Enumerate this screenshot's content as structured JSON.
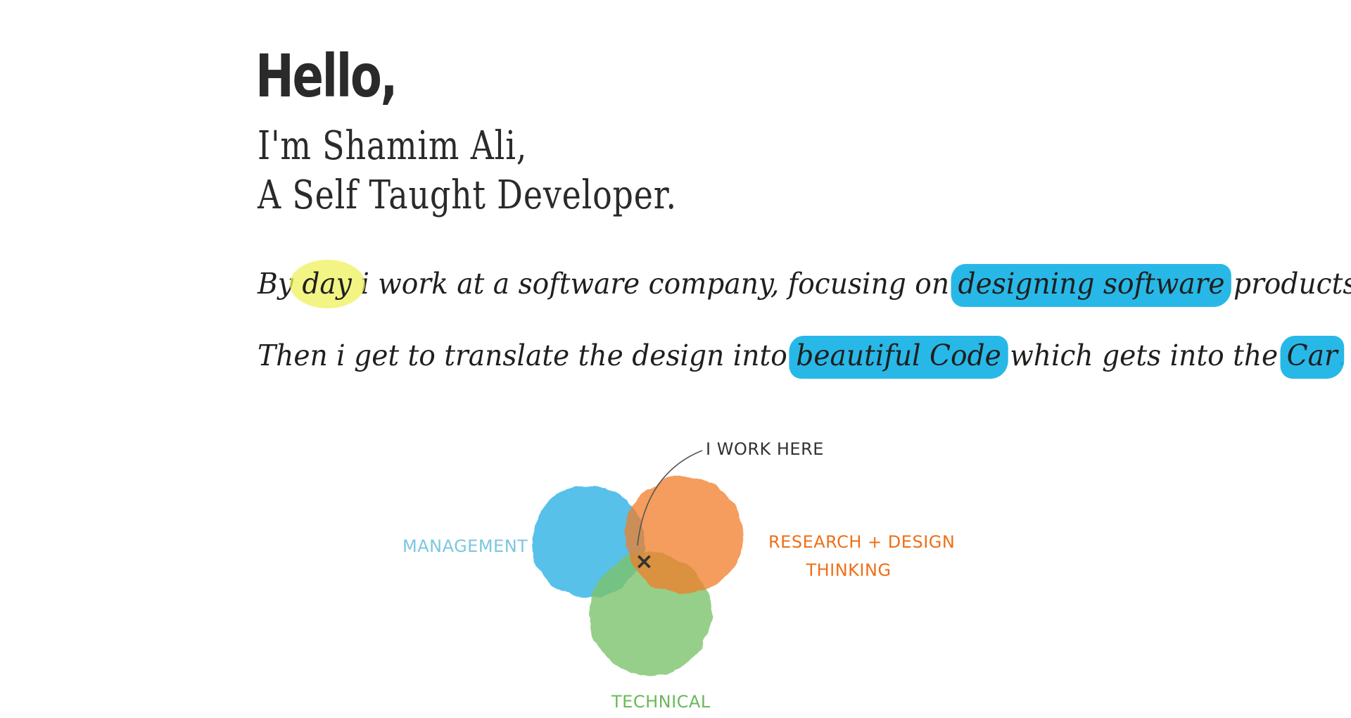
{
  "greeting": "Hello,",
  "intro": {
    "line1": "I'm Shamim Ali,",
    "line2": "A Self Taught Developer."
  },
  "bio": {
    "line1": {
      "pre": "By ",
      "hl_day": "day",
      "mid": " i work at a software company, focusing on ",
      "hl_design": "designing software",
      "post": " products."
    },
    "line2": {
      "pre": "Then i get to translate the design into ",
      "hl_code": "beautiful Code",
      "mid": " which gets into the ",
      "hl_car": "Car",
      "post": "."
    }
  },
  "venn": {
    "annotation": "I WORK HERE",
    "marker": "×",
    "circles": [
      {
        "label": "MANAGEMENT",
        "color": "#39b6e6"
      },
      {
        "label_line1": "RESEARCH + DESIGN",
        "label_line2": "THINKING",
        "color": "#f07c2a"
      },
      {
        "label": "TECHNICAL",
        "color": "#7cc36a"
      }
    ]
  },
  "colors": {
    "highlight_blue": "#1cb4e6",
    "highlight_yellow": "#eef25a",
    "management_text": "#7cc7e0",
    "research_text": "#ef6f17",
    "technical_text": "#6ab85a"
  }
}
